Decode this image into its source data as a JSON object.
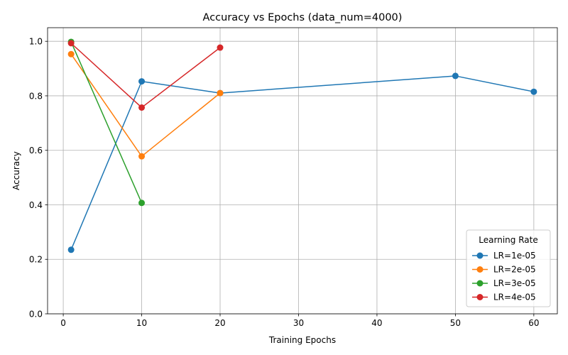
{
  "chart_data": {
    "type": "line",
    "title": "Accuracy vs Epochs (data_num=4000)",
    "xlabel": "Training Epochs",
    "ylabel": "Accuracy",
    "xlim": [
      -2,
      63
    ],
    "ylim": [
      0,
      1.05
    ],
    "xticks": [
      0,
      10,
      20,
      30,
      40,
      50,
      60
    ],
    "yticks": [
      0.0,
      0.2,
      0.4,
      0.6,
      0.8,
      1.0
    ],
    "grid": true,
    "legend": {
      "title": "Learning Rate",
      "position": "lower-right"
    },
    "series": [
      {
        "name": "LR=1e-05",
        "color": "#1f77b4",
        "x": [
          1,
          10,
          20,
          50,
          60
        ],
        "y": [
          0.235,
          0.853,
          0.81,
          0.873,
          0.815
        ]
      },
      {
        "name": "LR=2e-05",
        "color": "#ff7f0e",
        "x": [
          1,
          10,
          20
        ],
        "y": [
          0.953,
          0.578,
          0.81
        ]
      },
      {
        "name": "LR=3e-05",
        "color": "#2ca02c",
        "x": [
          1,
          10
        ],
        "y": [
          0.998,
          0.407
        ]
      },
      {
        "name": "LR=4e-05",
        "color": "#d62728",
        "x": [
          1,
          10,
          20
        ],
        "y": [
          0.993,
          0.757,
          0.977
        ]
      }
    ]
  }
}
